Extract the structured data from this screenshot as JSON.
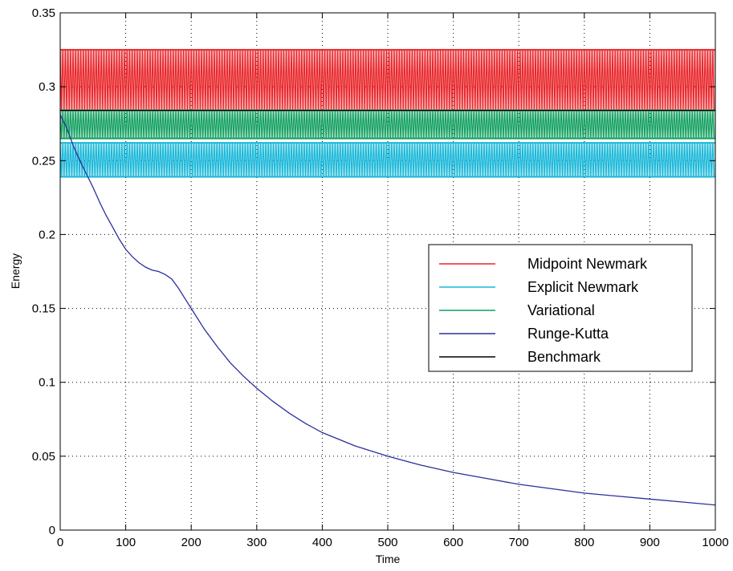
{
  "chart_data": {
    "type": "line",
    "title": "",
    "xlabel": "Time",
    "ylabel": "Energy",
    "xlim": [
      0,
      1000
    ],
    "ylim": [
      0,
      0.35
    ],
    "xticks": [
      0,
      100,
      200,
      300,
      400,
      500,
      600,
      700,
      800,
      900,
      1000
    ],
    "yticks": [
      0,
      0.05,
      0.1,
      0.15,
      0.2,
      0.25,
      0.3,
      0.35
    ],
    "xtick_labels": [
      "0",
      "100",
      "200",
      "300",
      "400",
      "500",
      "600",
      "700",
      "800",
      "900",
      "1000"
    ],
    "ytick_labels": [
      "0",
      "0.05",
      "0.1",
      "0.15",
      "0.2",
      "0.25",
      "0.3",
      "0.35"
    ],
    "grid": true,
    "grid_style": "dotted",
    "legend_position": "center-right",
    "series": [
      {
        "name": "Midpoint Newmark",
        "color": "#e8262b",
        "style": "oscillating band",
        "band_min": 0.284,
        "band_max": 0.325,
        "x": [
          0,
          1000
        ],
        "y": [
          0.325,
          0.284
        ]
      },
      {
        "name": "Explicit Newmark",
        "color": "#19b8d8",
        "style": "oscillating band",
        "band_min": 0.239,
        "band_max": 0.262,
        "x": [
          0,
          1000
        ],
        "y": [
          0.262,
          0.239
        ]
      },
      {
        "name": "Variational",
        "color": "#13a060",
        "style": "oscillating band",
        "band_min": 0.265,
        "band_max": 0.284,
        "x": [
          0,
          1000
        ],
        "y": [
          0.284,
          0.265
        ]
      },
      {
        "name": "Runge-Kutta",
        "color": "#2b2f9a",
        "style": "line",
        "x": [
          0,
          10,
          20,
          30,
          40,
          50,
          60,
          70,
          80,
          90,
          100,
          110,
          120,
          130,
          140,
          150,
          160,
          170,
          180,
          190,
          200,
          220,
          240,
          260,
          280,
          300,
          325,
          350,
          375,
          400,
          450,
          500,
          550,
          600,
          650,
          700,
          750,
          800,
          850,
          900,
          950,
          1000
        ],
        "y": [
          0.281,
          0.272,
          0.26,
          0.25,
          0.241,
          0.232,
          0.222,
          0.213,
          0.205,
          0.197,
          0.19,
          0.185,
          0.181,
          0.178,
          0.176,
          0.175,
          0.173,
          0.17,
          0.164,
          0.157,
          0.15,
          0.136,
          0.124,
          0.113,
          0.104,
          0.096,
          0.087,
          0.079,
          0.072,
          0.066,
          0.057,
          0.05,
          0.044,
          0.039,
          0.035,
          0.031,
          0.028,
          0.025,
          0.023,
          0.021,
          0.019,
          0.017
        ]
      },
      {
        "name": "Benchmark",
        "color": "#000000",
        "style": "line",
        "x": [
          0,
          1000
        ],
        "y": [
          0.284,
          0.284
        ]
      }
    ]
  }
}
